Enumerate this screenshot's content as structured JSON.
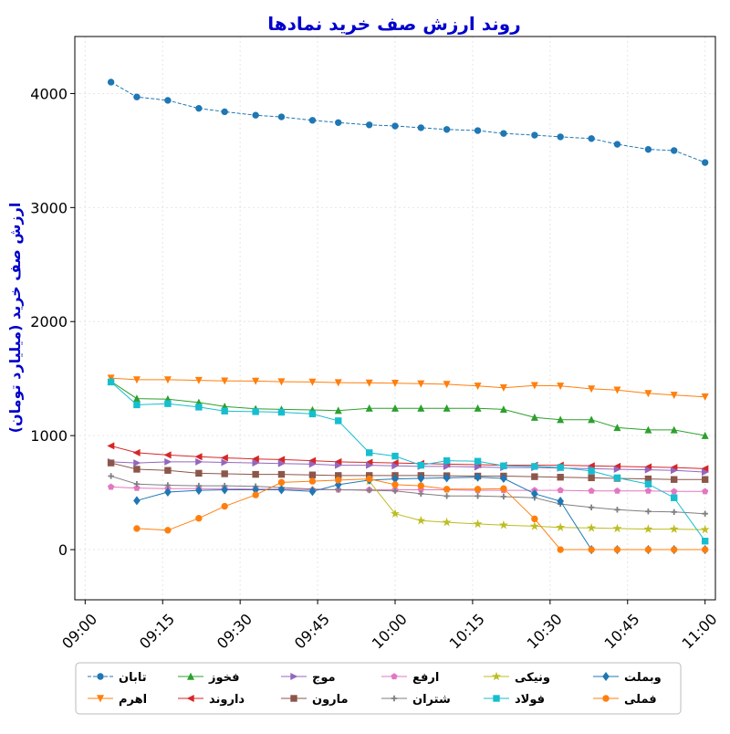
{
  "chart_data": {
    "type": "line",
    "title": "روند ارزش صف خرید نمادها",
    "ylabel": "ارزش صف خرید (میلیارد تومان)",
    "xlabel": "",
    "title_color": "#0000cc",
    "ylim": [
      -440,
      4500
    ],
    "xlim": [
      "08:58",
      "11:02"
    ],
    "y_ticks": [
      0,
      1000,
      2000,
      3000,
      4000
    ],
    "x_ticks": [
      "09:00",
      "09:15",
      "09:30",
      "09:45",
      "10:00",
      "10:15",
      "10:30",
      "10:45",
      "11:00"
    ],
    "grid": true,
    "legend_position": "bottom-center",
    "series": [
      {
        "name": "تابان",
        "color": "#1f77b4",
        "marker": "circle",
        "dashed": true,
        "points": [
          [
            "09:05",
            4100
          ],
          [
            "09:10",
            3970
          ],
          [
            "09:16",
            3940
          ],
          [
            "09:22",
            3870
          ],
          [
            "09:27",
            3840
          ],
          [
            "09:33",
            3810
          ],
          [
            "09:38",
            3795
          ],
          [
            "09:44",
            3765
          ],
          [
            "09:49",
            3745
          ],
          [
            "09:55",
            3725
          ],
          [
            "10:00",
            3715
          ],
          [
            "10:05",
            3700
          ],
          [
            "10:10",
            3685
          ],
          [
            "10:16",
            3675
          ],
          [
            "10:21",
            3650
          ],
          [
            "10:27",
            3635
          ],
          [
            "10:32",
            3620
          ],
          [
            "10:38",
            3605
          ],
          [
            "10:43",
            3555
          ],
          [
            "10:49",
            3510
          ],
          [
            "10:54",
            3500
          ],
          [
            "11:00",
            3395
          ]
        ]
      },
      {
        "name": "اهرم",
        "color": "#ff7f0e",
        "marker": "triangle-down",
        "dashed": false,
        "points": [
          [
            "09:05",
            1505
          ],
          [
            "09:10",
            1490
          ],
          [
            "09:16",
            1490
          ],
          [
            "09:22",
            1485
          ],
          [
            "09:27",
            1480
          ],
          [
            "09:33",
            1478
          ],
          [
            "09:38",
            1473
          ],
          [
            "09:44",
            1470
          ],
          [
            "09:49",
            1465
          ],
          [
            "09:55",
            1462
          ],
          [
            "10:00",
            1460
          ],
          [
            "10:05",
            1455
          ],
          [
            "10:10",
            1450
          ],
          [
            "10:16",
            1435
          ],
          [
            "10:21",
            1420
          ],
          [
            "10:27",
            1440
          ],
          [
            "10:32",
            1435
          ],
          [
            "10:38",
            1410
          ],
          [
            "10:43",
            1400
          ],
          [
            "10:49",
            1370
          ],
          [
            "10:54",
            1355
          ],
          [
            "11:00",
            1340
          ]
        ]
      },
      {
        "name": "فخوز",
        "color": "#2ca02c",
        "marker": "triangle-up",
        "dashed": false,
        "points": [
          [
            "09:05",
            1475
          ],
          [
            "09:10",
            1325
          ],
          [
            "09:16",
            1320
          ],
          [
            "09:22",
            1290
          ],
          [
            "09:27",
            1255
          ],
          [
            "09:33",
            1235
          ],
          [
            "09:38",
            1230
          ],
          [
            "09:44",
            1225
          ],
          [
            "09:49",
            1220
          ],
          [
            "09:55",
            1240
          ],
          [
            "10:00",
            1240
          ],
          [
            "10:05",
            1240
          ],
          [
            "10:10",
            1240
          ],
          [
            "10:16",
            1240
          ],
          [
            "10:21",
            1230
          ],
          [
            "10:27",
            1160
          ],
          [
            "10:32",
            1140
          ],
          [
            "10:38",
            1140
          ],
          [
            "10:43",
            1070
          ],
          [
            "10:49",
            1050
          ],
          [
            "10:54",
            1050
          ],
          [
            "11:00",
            1000
          ]
        ]
      },
      {
        "name": "داروند",
        "color": "#d62728",
        "marker": "triangle-left",
        "dashed": false,
        "points": [
          [
            "09:05",
            910
          ],
          [
            "09:10",
            850
          ],
          [
            "09:16",
            830
          ],
          [
            "09:22",
            815
          ],
          [
            "09:27",
            805
          ],
          [
            "09:33",
            795
          ],
          [
            "09:38",
            790
          ],
          [
            "09:44",
            780
          ],
          [
            "09:49",
            770
          ],
          [
            "09:55",
            765
          ],
          [
            "10:00",
            760
          ],
          [
            "10:05",
            755
          ],
          [
            "10:10",
            750
          ],
          [
            "10:16",
            745
          ],
          [
            "10:21",
            740
          ],
          [
            "10:27",
            740
          ],
          [
            "10:32",
            740
          ],
          [
            "10:38",
            735
          ],
          [
            "10:43",
            730
          ],
          [
            "10:49",
            725
          ],
          [
            "10:54",
            720
          ],
          [
            "11:00",
            710
          ]
        ]
      },
      {
        "name": "موج",
        "color": "#9467bd",
        "marker": "triangle-right",
        "dashed": false,
        "points": [
          [
            "09:05",
            770
          ],
          [
            "09:10",
            760
          ],
          [
            "09:16",
            770
          ],
          [
            "09:22",
            770
          ],
          [
            "09:27",
            765
          ],
          [
            "09:33",
            760
          ],
          [
            "09:38",
            755
          ],
          [
            "09:44",
            750
          ],
          [
            "09:49",
            740
          ],
          [
            "09:55",
            740
          ],
          [
            "10:00",
            735
          ],
          [
            "10:05",
            730
          ],
          [
            "10:10",
            730
          ],
          [
            "10:16",
            725
          ],
          [
            "10:21",
            720
          ],
          [
            "10:27",
            720
          ],
          [
            "10:32",
            715
          ],
          [
            "10:38",
            710
          ],
          [
            "10:43",
            705
          ],
          [
            "10:49",
            700
          ],
          [
            "10:54",
            695
          ],
          [
            "11:00",
            680
          ]
        ]
      },
      {
        "name": "مارون",
        "color": "#8c564b",
        "marker": "square",
        "dashed": false,
        "points": [
          [
            "09:05",
            760
          ],
          [
            "09:10",
            705
          ],
          [
            "09:16",
            695
          ],
          [
            "09:22",
            670
          ],
          [
            "09:27",
            665
          ],
          [
            "09:33",
            660
          ],
          [
            "09:38",
            660
          ],
          [
            "09:44",
            655
          ],
          [
            "09:49",
            650
          ],
          [
            "09:55",
            650
          ],
          [
            "10:00",
            650
          ],
          [
            "10:05",
            650
          ],
          [
            "10:10",
            648
          ],
          [
            "10:16",
            645
          ],
          [
            "10:21",
            645
          ],
          [
            "10:27",
            640
          ],
          [
            "10:32",
            635
          ],
          [
            "10:38",
            630
          ],
          [
            "10:43",
            625
          ],
          [
            "10:49",
            620
          ],
          [
            "10:54",
            615
          ],
          [
            "11:00",
            615
          ]
        ]
      },
      {
        "name": "ارفع",
        "color": "#e377c2",
        "marker": "pentagon",
        "dashed": false,
        "points": [
          [
            "09:05",
            550
          ],
          [
            "09:10",
            540
          ],
          [
            "09:16",
            535
          ],
          [
            "09:22",
            535
          ],
          [
            "09:27",
            535
          ],
          [
            "09:33",
            530
          ],
          [
            "09:38",
            530
          ],
          [
            "09:44",
            525
          ],
          [
            "09:49",
            525
          ],
          [
            "09:55",
            525
          ],
          [
            "10:00",
            525
          ],
          [
            "10:05",
            525
          ],
          [
            "10:10",
            525
          ],
          [
            "10:16",
            520
          ],
          [
            "10:21",
            520
          ],
          [
            "10:27",
            520
          ],
          [
            "10:32",
            520
          ],
          [
            "10:38",
            515
          ],
          [
            "10:43",
            515
          ],
          [
            "10:49",
            515
          ],
          [
            "10:54",
            510
          ],
          [
            "11:00",
            510
          ]
        ]
      },
      {
        "name": "شتران",
        "color": "#7f7f7f",
        "marker": "plus",
        "dashed": false,
        "points": [
          [
            "09:05",
            645
          ],
          [
            "09:10",
            575
          ],
          [
            "09:16",
            565
          ],
          [
            "09:22",
            560
          ],
          [
            "09:27",
            560
          ],
          [
            "09:33",
            555
          ],
          [
            "09:38",
            545
          ],
          [
            "09:44",
            530
          ],
          [
            "09:49",
            525
          ],
          [
            "09:55",
            520
          ],
          [
            "10:00",
            515
          ],
          [
            "10:05",
            490
          ],
          [
            "10:10",
            470
          ],
          [
            "10:16",
            470
          ],
          [
            "10:21",
            465
          ],
          [
            "10:27",
            455
          ],
          [
            "10:32",
            400
          ],
          [
            "10:38",
            370
          ],
          [
            "10:43",
            350
          ],
          [
            "10:49",
            335
          ],
          [
            "10:54",
            330
          ],
          [
            "11:00",
            315
          ]
        ]
      },
      {
        "name": "ونیکی",
        "color": "#bcbd22",
        "marker": "star",
        "dashed": false,
        "points": [
          [
            "09:55",
            600
          ],
          [
            "10:00",
            315
          ],
          [
            "10:05",
            255
          ],
          [
            "10:10",
            240
          ],
          [
            "10:16",
            225
          ],
          [
            "10:21",
            215
          ],
          [
            "10:27",
            205
          ],
          [
            "10:32",
            195
          ],
          [
            "10:38",
            190
          ],
          [
            "10:43",
            185
          ],
          [
            "10:49",
            180
          ],
          [
            "10:54",
            180
          ],
          [
            "11:00",
            175
          ]
        ]
      },
      {
        "name": "فولاد",
        "color": "#17becf",
        "marker": "square",
        "dashed": false,
        "points": [
          [
            "09:05",
            1470
          ],
          [
            "09:10",
            1270
          ],
          [
            "09:16",
            1280
          ],
          [
            "09:22",
            1250
          ],
          [
            "09:27",
            1215
          ],
          [
            "09:33",
            1210
          ],
          [
            "09:38",
            1205
          ],
          [
            "09:44",
            1190
          ],
          [
            "09:49",
            1130
          ],
          [
            "09:55",
            850
          ],
          [
            "10:00",
            820
          ],
          [
            "10:05",
            740
          ],
          [
            "10:10",
            780
          ],
          [
            "10:16",
            775
          ],
          [
            "10:21",
            735
          ],
          [
            "10:27",
            730
          ],
          [
            "10:32",
            720
          ],
          [
            "10:38",
            690
          ],
          [
            "10:43",
            630
          ],
          [
            "10:49",
            575
          ],
          [
            "10:54",
            455
          ],
          [
            "11:00",
            75
          ]
        ]
      },
      {
        "name": "وبملت",
        "color": "#1f77b4",
        "marker": "diamond",
        "dashed": false,
        "points": [
          [
            "09:10",
            430
          ],
          [
            "09:16",
            505
          ],
          [
            "09:22",
            520
          ],
          [
            "09:27",
            525
          ],
          [
            "09:33",
            525
          ],
          [
            "09:38",
            525
          ],
          [
            "09:44",
            510
          ],
          [
            "09:49",
            570
          ],
          [
            "09:55",
            610
          ],
          [
            "10:00",
            620
          ],
          [
            "10:05",
            625
          ],
          [
            "10:10",
            630
          ],
          [
            "10:16",
            635
          ],
          [
            "10:21",
            625
          ],
          [
            "10:27",
            490
          ],
          [
            "10:32",
            425
          ],
          [
            "10:38",
            0
          ],
          [
            "10:43",
            0
          ],
          [
            "10:49",
            0
          ],
          [
            "10:54",
            0
          ],
          [
            "11:00",
            0
          ]
        ]
      },
      {
        "name": "فملی",
        "color": "#ff7f0e",
        "marker": "circle",
        "dashed": false,
        "points": [
          [
            "09:10",
            185
          ],
          [
            "09:16",
            170
          ],
          [
            "09:22",
            275
          ],
          [
            "09:27",
            380
          ],
          [
            "09:33",
            480
          ],
          [
            "09:38",
            590
          ],
          [
            "09:44",
            600
          ],
          [
            "09:49",
            610
          ],
          [
            "09:55",
            620
          ],
          [
            "10:00",
            570
          ],
          [
            "10:05",
            560
          ],
          [
            "10:10",
            530
          ],
          [
            "10:16",
            530
          ],
          [
            "10:21",
            535
          ],
          [
            "10:27",
            270
          ],
          [
            "10:32",
            0
          ],
          [
            "10:38",
            0
          ],
          [
            "10:43",
            0
          ],
          [
            "10:49",
            0
          ],
          [
            "10:54",
            0
          ],
          [
            "11:00",
            0
          ]
        ]
      }
    ]
  }
}
